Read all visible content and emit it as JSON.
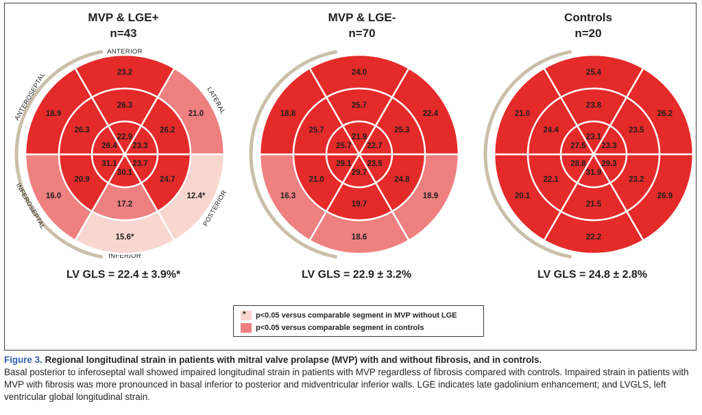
{
  "colors": {
    "dark": "#e52a2a",
    "mid": "#ef8080",
    "light": "#f9d6d0",
    "ring": "#cbbfa9"
  },
  "panels": [
    {
      "title": "MVP & LGE+",
      "n": "n=43",
      "gls": "LV GLS = 22.4 ± 3.9%*",
      "basal": [
        {
          "value": "23.2",
          "shade": "dark"
        },
        {
          "value": "21.0",
          "shade": "mid"
        },
        {
          "value": "12.4*",
          "shade": "light"
        },
        {
          "value": "15.6*",
          "shade": "light"
        },
        {
          "value": "16.0",
          "shade": "mid"
        },
        {
          "value": "18.9",
          "shade": "dark"
        }
      ],
      "mid": [
        {
          "value": "26.3",
          "shade": "dark"
        },
        {
          "value": "26.2",
          "shade": "dark"
        },
        {
          "value": "24.7",
          "shade": "dark"
        },
        {
          "value": "17.2",
          "shade": "mid"
        },
        {
          "value": "20.9",
          "shade": "dark"
        },
        {
          "value": "26.3",
          "shade": "dark"
        }
      ],
      "apical": [
        {
          "value": "22.9",
          "shade": "dark"
        },
        {
          "value": "23.3",
          "shade": "dark"
        },
        {
          "value": "23.7",
          "shade": "dark"
        },
        {
          "value": "30.1",
          "shade": "dark"
        },
        {
          "value": "31.1",
          "shade": "dark"
        },
        {
          "value": "26.4",
          "shade": "dark"
        }
      ]
    },
    {
      "title": "MVP & LGE-",
      "n": "n=70",
      "gls": "LV GLS = 22.9 ± 3.2%",
      "basal": [
        {
          "value": "24.0",
          "shade": "dark"
        },
        {
          "value": "22.4",
          "shade": "dark"
        },
        {
          "value": "18.9",
          "shade": "mid"
        },
        {
          "value": "18.6",
          "shade": "mid"
        },
        {
          "value": "16.3",
          "shade": "mid"
        },
        {
          "value": "18.8",
          "shade": "dark"
        }
      ],
      "mid": [
        {
          "value": "25.7",
          "shade": "dark"
        },
        {
          "value": "25.3",
          "shade": "dark"
        },
        {
          "value": "24.8",
          "shade": "dark"
        },
        {
          "value": "19.7",
          "shade": "dark"
        },
        {
          "value": "21.0",
          "shade": "dark"
        },
        {
          "value": "25.7",
          "shade": "dark"
        }
      ],
      "apical": [
        {
          "value": "21.9",
          "shade": "dark"
        },
        {
          "value": "22.7",
          "shade": "dark"
        },
        {
          "value": "23.5",
          "shade": "dark"
        },
        {
          "value": "29.7",
          "shade": "dark"
        },
        {
          "value": "29.1",
          "shade": "dark"
        },
        {
          "value": "25.7",
          "shade": "dark"
        }
      ]
    },
    {
      "title": "Controls",
      "n": "n=20",
      "gls": "LV GLS = 24.8 ± 2.8%",
      "basal": [
        {
          "value": "25.4",
          "shade": "dark"
        },
        {
          "value": "26.2",
          "shade": "dark"
        },
        {
          "value": "26.9",
          "shade": "dark"
        },
        {
          "value": "22.2",
          "shade": "dark"
        },
        {
          "value": "20.1",
          "shade": "dark"
        },
        {
          "value": "21.0",
          "shade": "dark"
        }
      ],
      "mid": [
        {
          "value": "23.8",
          "shade": "dark"
        },
        {
          "value": "23.5",
          "shade": "dark"
        },
        {
          "value": "23.2",
          "shade": "dark"
        },
        {
          "value": "21.5",
          "shade": "dark"
        },
        {
          "value": "22.1",
          "shade": "dark"
        },
        {
          "value": "24.4",
          "shade": "dark"
        }
      ],
      "apical": [
        {
          "value": "23.1",
          "shade": "dark"
        },
        {
          "value": "23.3",
          "shade": "dark"
        },
        {
          "value": "29.3",
          "shade": "dark"
        },
        {
          "value": "31.9",
          "shade": "dark"
        },
        {
          "value": "28.8",
          "shade": "dark"
        },
        {
          "value": "27.5",
          "shade": "dark"
        }
      ]
    }
  ],
  "wall_labels": {
    "anterior": "ANTERIOR",
    "lateral": "LATERAL",
    "posterior": "POSTERIOR",
    "inferior": "INFERIOR",
    "inferoseptal": "INFEROSEPTAL",
    "anteroseptal": "ANTEROSEPTAL"
  },
  "legend": {
    "star_mark": "*",
    "item1": "p<0.05 versus comparable segment in MVP without LGE",
    "item2": "p<0.05 versus comparable segment in controls"
  },
  "caption": {
    "label": "Figure 3.",
    "title": "Regional longitudinal strain in patients with mitral valve prolapse (MVP) with and without fibrosis, and in controls.",
    "body": "Basal posterior to inferoseptal wall showed impaired longitudinal strain in patients with MVP regardless of fibrosis compared with controls. Impaired strain in patients with MVP with fibrosis was more pronounced in basal inferior to posterior and midventricular inferior walls. LGE indicates late gadolinium enhancement; and LVGLS, left ventricular global longitudinal strain."
  }
}
